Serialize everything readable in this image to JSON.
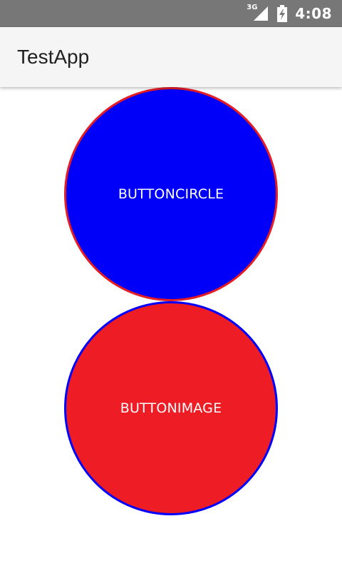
{
  "status_bar": {
    "network_label": "3G",
    "time": "4:08",
    "network_icon": "signal-icon",
    "battery_icon": "battery-charging-icon"
  },
  "app_bar": {
    "title": "TestApp"
  },
  "buttons": {
    "circle": {
      "label": "BUTTONCIRCLE",
      "fill_color": "#0000fa",
      "border_color": "#e51c23"
    },
    "image": {
      "label": "BUTTONIMAGE",
      "fill_color": "#ee1c25",
      "border_color": "#0000ff"
    }
  }
}
